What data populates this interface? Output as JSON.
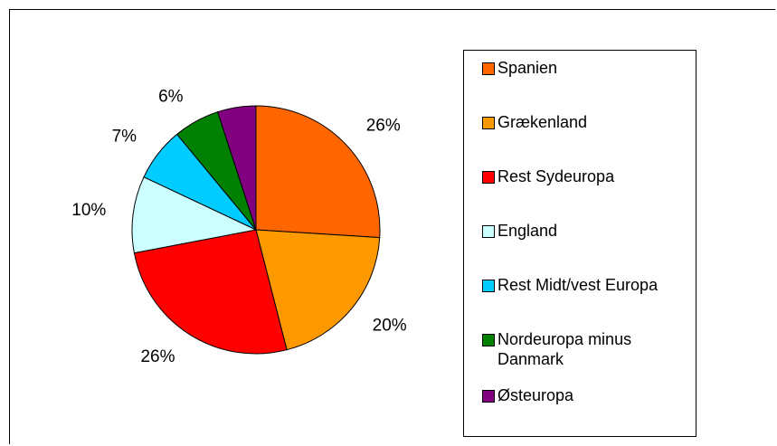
{
  "chart_data": {
    "type": "pie",
    "categories": [
      "Spanien",
      "Grækenland",
      "Rest Sydeuropa",
      "England",
      "Rest Midt/vest Europa",
      "Nordeuropa minus Danmark",
      "Østeuropa"
    ],
    "values": [
      26,
      20,
      26,
      10,
      7,
      6,
      5
    ],
    "value_labels": [
      "26%",
      "20%",
      "26%",
      "10%",
      "7%",
      "6%",
      null
    ],
    "colors": [
      "#FF6600",
      "#FF9900",
      "#FF0000",
      "#CCFFFF",
      "#00CCFF",
      "#008000",
      "#800080"
    ]
  }
}
